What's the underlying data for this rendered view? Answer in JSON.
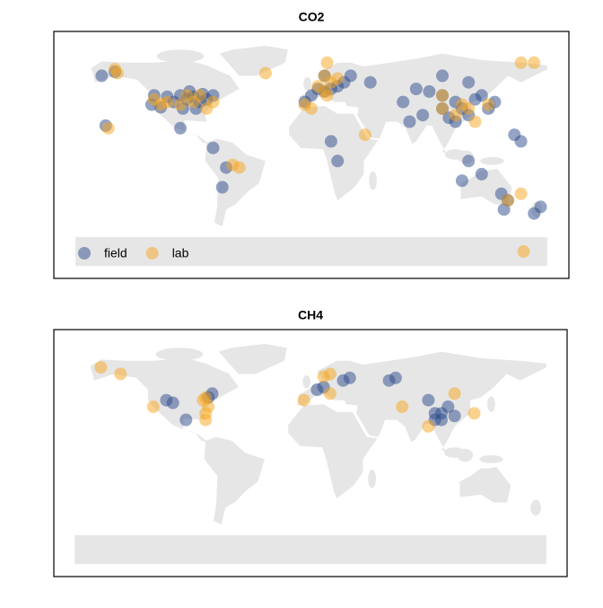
{
  "chart_data": [
    {
      "type": "scatter",
      "title": "CO2",
      "xlim": [
        -180,
        180
      ],
      "ylim": [
        -90,
        90
      ],
      "legend": "bottom-left",
      "series": [
        {
          "name": "field",
          "color": "#2b4a8b",
          "x": [
            -100,
            -95,
            -90,
            -85,
            -105,
            -110,
            -120,
            -80,
            -75,
            -98,
            -88,
            -115,
            -122,
            -93,
            -83,
            -150,
            -160,
            -157,
            -100,
            -75,
            -65,
            -68,
            5,
            10,
            15,
            20,
            25,
            0,
            30,
            45,
            -5,
            10,
            15,
            20,
            80,
            90,
            100,
            110,
            115,
            120,
            125,
            130,
            85,
            100,
            105,
            70,
            75,
            120,
            100,
            110,
            135,
            140,
            115,
            130,
            145,
            150,
            147,
            170,
            175,
            120,
            155,
            160
          ],
          "values": [
            45,
            42,
            44,
            40,
            40,
            44,
            45,
            42,
            45,
            35,
            35,
            36,
            38,
            48,
            46,
            63,
            60,
            22,
            20,
            5,
            -10,
            -25,
            50,
            48,
            50,
            52,
            55,
            45,
            60,
            55,
            40,
            60,
            10,
            -5,
            50,
            48,
            45,
            40,
            35,
            30,
            42,
            45,
            30,
            35,
            28,
            40,
            25,
            55,
            60,
            25,
            35,
            40,
            -20,
            -15,
            -30,
            -35,
            -42,
            -45,
            -40,
            -5,
            15,
            10
          ]
        },
        {
          "name": "lab",
          "color": "#f7a51c",
          "x": [
            -150,
            -148,
            -120,
            -110,
            -95,
            -90,
            -85,
            -100,
            -115,
            -80,
            -75,
            -155,
            -60,
            -55,
            -35,
            10,
            5,
            12,
            0,
            -5,
            15,
            41,
            12,
            10,
            20,
            100,
            110,
            115,
            120,
            135,
            125,
            160,
            170,
            100,
            150,
            160,
            162
          ],
          "values": [
            65,
            62,
            42,
            40,
            45,
            40,
            45,
            38,
            38,
            35,
            40,
            20,
            -8,
            -10,
            62,
            48,
            52,
            45,
            35,
            38,
            55,
            15,
            70,
            60,
            58,
            35,
            30,
            38,
            35,
            38,
            25,
            70,
            70,
            45,
            -35,
            -30,
            -74
          ]
        }
      ]
    },
    {
      "type": "scatter",
      "title": "CH4",
      "xlim": [
        -180,
        180
      ],
      "ylim": [
        -90,
        90
      ],
      "series": [
        {
          "name": "field",
          "color": "#2b4a8b",
          "x": [
            -75,
            -78,
            -110,
            -105,
            -95,
            10,
            5,
            25,
            30,
            60,
            65,
            90,
            95,
            100,
            105,
            100,
            110,
            95
          ],
          "values": [
            45,
            42,
            40,
            38,
            25,
            50,
            48,
            55,
            57,
            55,
            57,
            40,
            30,
            30,
            35,
            25,
            28,
            25
          ]
        },
        {
          "name": "lab",
          "color": "#f7a51c",
          "x": [
            -160,
            -145,
            -120,
            -80,
            -82,
            -78,
            -80,
            -80,
            -5,
            10,
            15,
            15,
            70,
            110,
            125,
            90
          ],
          "values": [
            65,
            60,
            35,
            42,
            40,
            35,
            30,
            25,
            40,
            58,
            60,
            45,
            35,
            45,
            30,
            20
          ]
        }
      ]
    }
  ]
}
